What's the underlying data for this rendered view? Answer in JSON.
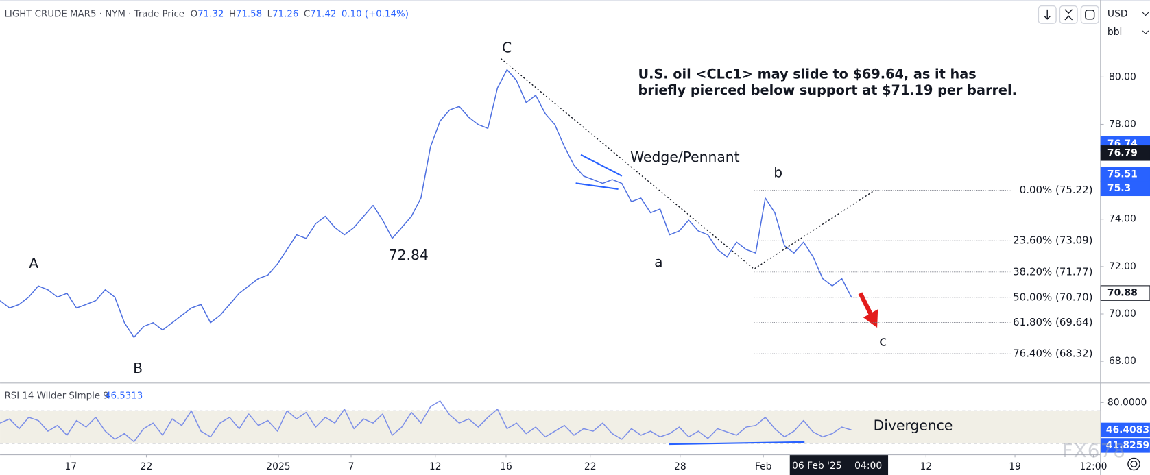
{
  "chart_data": [
    {
      "type": "line",
      "title": "LIGHT CRUDE MAR5 · NYM · Trade Price",
      "quote": [
        {
          "label": "O",
          "value": "71.32"
        },
        {
          "label": "H",
          "value": "71.58"
        },
        {
          "label": "L",
          "value": "71.26"
        },
        {
          "label": "C",
          "value": "71.42"
        },
        {
          "label": "",
          "value": "0.10 (+0.14%)"
        }
      ],
      "currency": "USD",
      "unit": "bbl",
      "note": [
        "U.S. oil <CLc1> may slide to $69.64, as it has",
        "briefly pierced below support at $71.19 per barrel."
      ],
      "annotations": [
        "A",
        "B",
        "C",
        "72.84",
        "a",
        "b",
        "c",
        "Wedge/Pennant"
      ],
      "watermark": "FX678",
      "xlim": [
        0,
        115
      ],
      "xticks": [
        {
          "value": 7.4,
          "label": "17"
        },
        {
          "value": 15.3,
          "label": "22"
        },
        {
          "value": 29.1,
          "label": "2025"
        },
        {
          "value": 36.7,
          "label": "7"
        },
        {
          "value": 45.5,
          "label": "12"
        },
        {
          "value": 52.9,
          "label": "16"
        },
        {
          "value": 61.7,
          "label": "22"
        },
        {
          "value": 71.1,
          "label": "28"
        },
        {
          "value": 79.8,
          "label": "Feb"
        },
        {
          "value": 96.8,
          "label": "12"
        },
        {
          "value": 106.1,
          "label": "19"
        },
        {
          "value": 114.3,
          "label": "12:00"
        }
      ],
      "crosshair": {
        "x": 87.7,
        "label": "06 Feb '25",
        "time": "04:00"
      },
      "ylim": [
        67.1,
        83.25
      ],
      "yticks": [
        {
          "value": 68,
          "label": "68.00"
        },
        {
          "value": 70,
          "label": "70.00"
        },
        {
          "value": 72,
          "label": "72.00"
        },
        {
          "value": 74,
          "label": "74.00"
        },
        {
          "value": 78,
          "label": "78.00"
        },
        {
          "value": 80,
          "label": "80.00"
        }
      ],
      "fib_levels": [
        {
          "label": "0.00% (75.22)",
          "value": 75.22
        },
        {
          "label": "23.60% (73.09)",
          "value": 73.09
        },
        {
          "label": "38.20% (71.77)",
          "value": 71.77
        },
        {
          "label": "50.00% (70.70)",
          "value": 70.7
        },
        {
          "label": "61.80% (69.64)",
          "value": 69.64
        },
        {
          "label": "76.40% (68.32)",
          "value": 68.32
        }
      ],
      "price_tags": [
        {
          "value": 76.74,
          "color": "#2962ff",
          "text_color": "#ffffff"
        },
        {
          "value": 76.79,
          "color": "#131722",
          "text_color": "#ffffff"
        },
        {
          "value": 75.51,
          "color": "#2962ff",
          "text_color": "#ffffff"
        },
        {
          "value": 75.3,
          "color": "#2962ff",
          "text_color": "#ffffff"
        },
        {
          "value": 70.88,
          "color": "#ffffff",
          "text_color": "#131722"
        }
      ],
      "series": [
        {
          "color": "#4d6fe0",
          "values": [
            70.56,
            70.25,
            70.4,
            70.71,
            71.18,
            71.02,
            70.71,
            70.87,
            70.25,
            70.4,
            70.56,
            71.02,
            70.71,
            69.63,
            69.01,
            69.47,
            69.63,
            69.32,
            69.63,
            69.94,
            70.25,
            70.4,
            69.63,
            69.94,
            70.4,
            70.87,
            71.18,
            71.49,
            71.64,
            72.11,
            72.72,
            73.34,
            73.19,
            73.81,
            74.12,
            73.65,
            73.34,
            73.65,
            74.12,
            74.58,
            73.96,
            73.19,
            73.65,
            74.12,
            74.89,
            77.06,
            78.14,
            78.61,
            78.76,
            78.3,
            77.99,
            77.83,
            79.54,
            80.31,
            79.85,
            78.92,
            79.23,
            78.45,
            77.99,
            77.06,
            76.28,
            75.82,
            75.67,
            75.51,
            75.67,
            75.51,
            74.74,
            74.89,
            74.27,
            74.43,
            73.34,
            73.5,
            73.96,
            73.5,
            73.34,
            72.72,
            72.41,
            73.03,
            72.72,
            72.57,
            74.89,
            74.27,
            72.88,
            72.57,
            73.03,
            72.41,
            71.49,
            71.18,
            71.49,
            70.71
          ]
        }
      ]
    },
    {
      "type": "line",
      "title": "RSI 14 Wilder Simple 9",
      "subtitle": "46.5313",
      "annotations": [
        "Divergence"
      ],
      "xlim": [
        0,
        115
      ],
      "ylim": [
        16.4,
        103.6
      ],
      "yticks": [
        {
          "value": 80,
          "label": "80.0000"
        }
      ],
      "bands": [
        30,
        70
      ],
      "value_tags": [
        {
          "value": 46.4083,
          "color": "#2962ff"
        },
        {
          "value": 41.8259,
          "color": "#2962ff"
        }
      ],
      "series": [
        {
          "color": "#7b8ee8",
          "values": [
            55,
            60,
            48,
            62,
            58,
            45,
            52,
            40,
            58,
            50,
            62,
            45,
            35,
            42,
            32,
            48,
            55,
            40,
            60,
            52,
            70,
            45,
            38,
            55,
            62,
            48,
            66,
            52,
            58,
            45,
            70,
            60,
            68,
            50,
            62,
            55,
            72,
            48,
            60,
            55,
            66,
            40,
            50,
            68,
            55,
            75,
            82,
            65,
            55,
            60,
            50,
            62,
            72,
            48,
            55,
            42,
            50,
            38,
            45,
            52,
            40,
            48,
            45,
            55,
            42,
            35,
            48,
            40,
            45,
            38,
            42,
            50,
            38,
            45,
            36,
            48,
            44,
            40,
            50,
            52,
            62,
            48,
            38,
            45,
            58,
            44,
            38,
            42,
            50,
            46.5
          ]
        }
      ]
    }
  ]
}
